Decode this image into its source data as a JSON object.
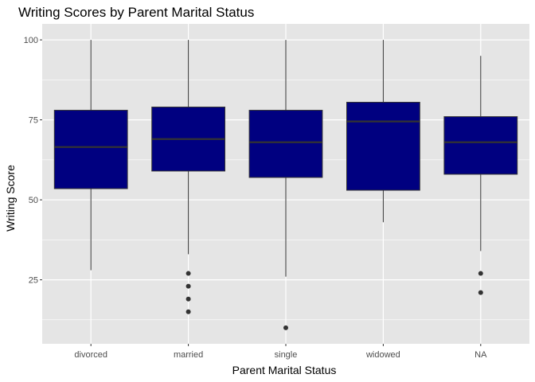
{
  "chart_data": {
    "type": "boxplot",
    "title": "Writing Scores by Parent Marital Status",
    "xlabel": "Parent Marital Status",
    "ylabel": "Writing Score",
    "ylim": [
      5,
      105
    ],
    "yticks": [
      25,
      50,
      75,
      100
    ],
    "grid": true,
    "colors": {
      "panel": "#e5e5e5",
      "grid": "#ffffff",
      "box_fill": "#000080",
      "box_line": "#333333",
      "outlier": "#333333"
    },
    "categories": [
      "divorced",
      "married",
      "single",
      "widowed",
      "NA"
    ],
    "boxes": [
      {
        "category": "divorced",
        "min": 28,
        "q1": 53.5,
        "median": 66.5,
        "q3": 78,
        "max": 100,
        "outliers": []
      },
      {
        "category": "married",
        "min": 33,
        "q1": 59,
        "median": 69,
        "q3": 79,
        "max": 100,
        "outliers": [
          27,
          23,
          19,
          15
        ]
      },
      {
        "category": "single",
        "min": 26,
        "q1": 57,
        "median": 68,
        "q3": 78,
        "max": 100,
        "outliers": [
          10
        ]
      },
      {
        "category": "widowed",
        "min": 43,
        "q1": 53,
        "median": 74.5,
        "q3": 80.5,
        "max": 100,
        "outliers": []
      },
      {
        "category": "NA",
        "min": 34,
        "q1": 58,
        "median": 68,
        "q3": 76,
        "max": 95,
        "outliers": [
          27,
          21
        ]
      }
    ]
  }
}
